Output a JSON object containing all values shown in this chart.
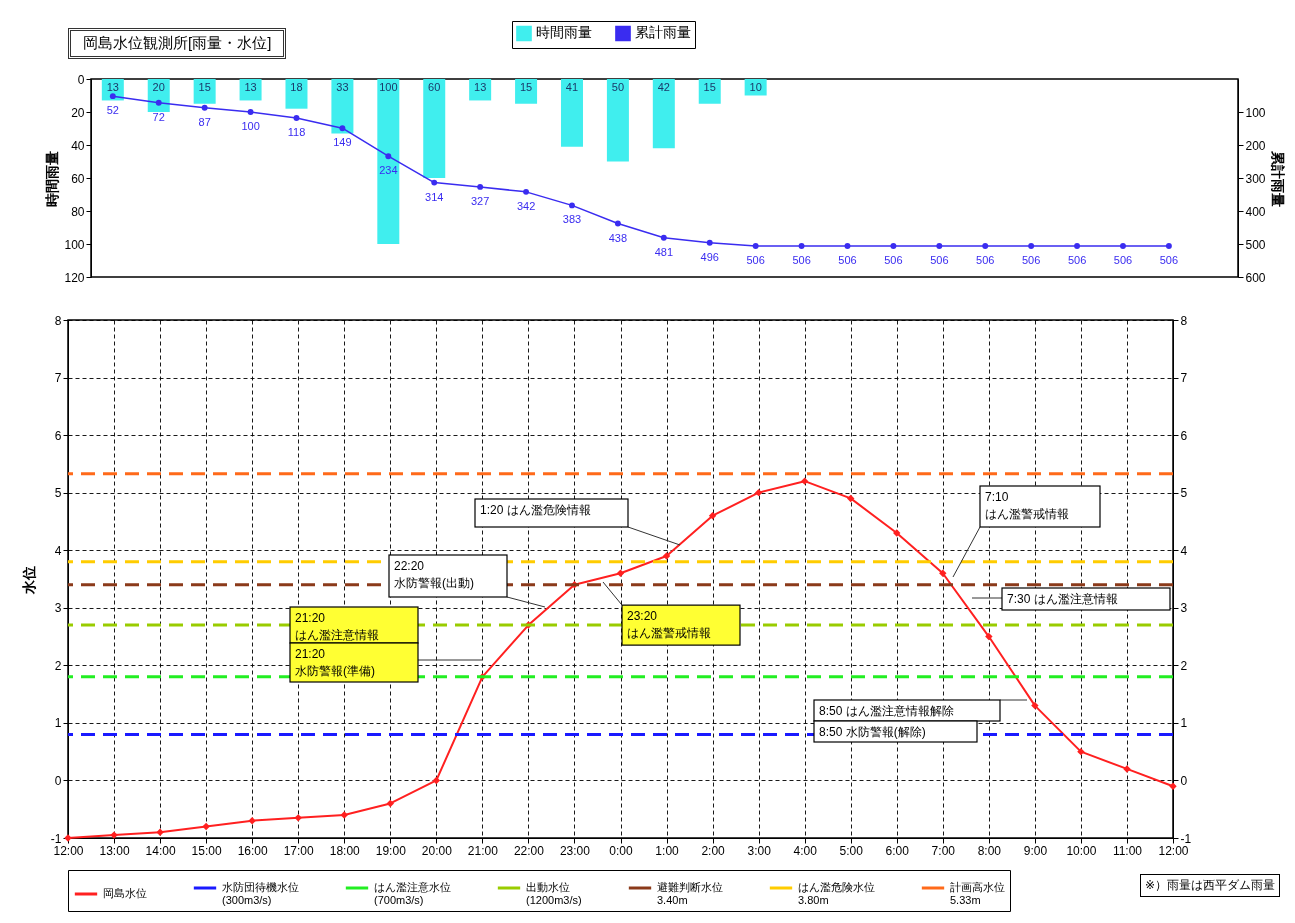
{
  "chart_data": [
    {
      "type": "bar",
      "title": "岡島水位観測所[雨量・水位]",
      "ylabel": "時間雨量",
      "y2label": "累計雨量",
      "categories": [
        null,
        null,
        null,
        null,
        null,
        null,
        null,
        null,
        null,
        null,
        null,
        null,
        null,
        null,
        null,
        null,
        null,
        null,
        null,
        null,
        null,
        null,
        null,
        null
      ],
      "series": [
        {
          "name": "時間雨量",
          "type": "bar",
          "color": "#40eeee",
          "values": [
            13,
            20,
            15,
            13,
            18,
            33,
            100,
            60,
            13,
            15,
            41,
            50,
            42,
            15,
            10,
            null,
            null,
            null,
            null,
            null,
            null,
            null,
            null,
            null
          ]
        },
        {
          "name": "累計雨量",
          "type": "line",
          "axis": "y2",
          "color": "#3a2cf0",
          "values": [
            52,
            72,
            87,
            100,
            118,
            149,
            234,
            314,
            327,
            342,
            383,
            438,
            481,
            496,
            506,
            506,
            506,
            506,
            506,
            506,
            506,
            506,
            506,
            506
          ]
        }
      ],
      "ylim": [
        120,
        0
      ],
      "yticks": [
        0,
        20,
        40,
        60,
        80,
        100,
        120
      ],
      "y2lim": [
        600,
        0
      ],
      "y2ticks": [
        100,
        200,
        300,
        400,
        500,
        600
      ],
      "legend": "top",
      "data_labels": true,
      "marker": "circle"
    },
    {
      "type": "line",
      "ylabel": "水位",
      "categories": [
        "12:00",
        "13:00",
        "14:00",
        "15:00",
        "16:00",
        "17:00",
        "18:00",
        "19:00",
        "20:00",
        "21:00",
        "22:00",
        "23:00",
        "0:00",
        "1:00",
        "2:00",
        "3:00",
        "4:00",
        "5:00",
        "6:00",
        "7:00",
        "8:00",
        "9:00",
        "10:00",
        "11:00",
        "12:00"
      ],
      "series": [
        {
          "name": "岡島水位",
          "color": "#ff2020",
          "values": [
            -1,
            -0.95,
            -0.9,
            -0.8,
            -0.7,
            -0.65,
            -0.6,
            -0.4,
            0,
            1.8,
            2.7,
            3.4,
            3.6,
            3.9,
            4.6,
            5,
            5.2,
            4.9,
            4.3,
            3.6,
            2.5,
            1.3,
            0.5,
            0.2,
            -0.1
          ]
        }
      ],
      "ylim": [
        -1,
        8
      ],
      "yticks": [
        -1,
        0,
        1,
        2,
        3,
        4,
        5,
        6,
        7,
        8
      ],
      "y2lim": [
        -1,
        8
      ],
      "y2ticks": [
        -1,
        0,
        1,
        2,
        3,
        4,
        5,
        6,
        7,
        8
      ],
      "ref_lines": [
        {
          "axis": "y",
          "value": 0.8,
          "label": "水防団待機水位\n(300m3/s)",
          "color": "#1a1aff",
          "line_style": "dashed"
        },
        {
          "axis": "y",
          "value": 1.8,
          "label": "はん濫注意水位\n(700m3/s)",
          "color": "#22ee22",
          "line_style": "dashed"
        },
        {
          "axis": "y",
          "value": 2.7,
          "label": "出動水位\n(1200m3/s)",
          "color": "#99cc00",
          "line_style": "dashed"
        },
        {
          "axis": "y",
          "value": 3.4,
          "label": "避難判断水位\n3.40m",
          "color": "#8b3a1a",
          "line_style": "dashed"
        },
        {
          "axis": "y",
          "value": 3.8,
          "label": "はん濫危険水位\n3.80m",
          "color": "#ffcc00",
          "line_style": "dashed"
        },
        {
          "axis": "y",
          "value": 5.33,
          "label": "計画高水位\n5.33m",
          "color": "#ff6a1a",
          "line_style": "dashed"
        }
      ],
      "annotations": [
        "1:20 はん濫危険情報",
        "22:20\n水防警報(出動)",
        {
          "text": "23:20\nはん濫警戒情報",
          "y": 3.45
        },
        "21:20\nはん濫注意情報",
        "21:20\n水防警報(準備)",
        "7:10\nはん濫警戒情報",
        "7:30 はん濫注意情報",
        "8:50 はん濫注意情報解除",
        "8:50 水防警報(解除)",
        "※）雨量は西平ダム雨量"
      ],
      "grid": true,
      "legend": "bottom",
      "marker": "diamond"
    }
  ]
}
